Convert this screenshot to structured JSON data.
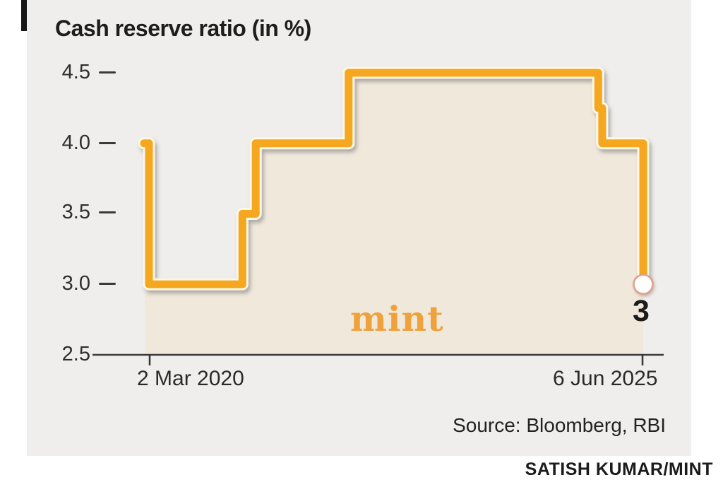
{
  "title": "Cash reserve ratio (in %)",
  "watermark": "mint",
  "source": "Source: Bloomberg, RBI",
  "credit": "SATISH KUMAR/MINT",
  "colors": {
    "line": "#f5a71f",
    "line_casing": "#fdf7e6",
    "line_shadow": "#7a7a78",
    "area_fill": "#f1e8dc",
    "panel_bg": "#efeeec",
    "marker_fill": "#ffffff",
    "marker_ring": "#e2a08b",
    "logo_orange": "#efa23b",
    "axis": "#3a3a3a"
  },
  "chart_data": {
    "type": "line",
    "subtype": "step",
    "title": "Cash reserve ratio (in %)",
    "ylabel": "Cash reserve ratio (%)",
    "xlabel": "",
    "ylim": [
      2.5,
      4.5
    ],
    "yticks": [
      "4.5",
      "4.0",
      "3.5",
      "3.0",
      "2.5"
    ],
    "xtick_labels": {
      "start": "2 Mar 2020",
      "end": "6 Jun 2025"
    },
    "grid": false,
    "legend": false,
    "area_fill_to_baseline": true,
    "end_label": "3",
    "end_value": 3.0,
    "series_name": "Cash reserve ratio",
    "points_note": "x is fraction of axis span between the 2 Mar 2020 and 6 Jun 2025 ticks; y is CRR in %",
    "points": [
      [
        0.0,
        4.0
      ],
      [
        0.0,
        3.0
      ],
      [
        0.189,
        3.0
      ],
      [
        0.189,
        3.5
      ],
      [
        0.216,
        3.5
      ],
      [
        0.216,
        4.0
      ],
      [
        0.404,
        4.0
      ],
      [
        0.404,
        4.5
      ],
      [
        0.909,
        4.5
      ],
      [
        0.909,
        4.25
      ],
      [
        0.917,
        4.25
      ],
      [
        0.917,
        4.0
      ],
      [
        1.0,
        4.0
      ],
      [
        1.0,
        3.0
      ]
    ]
  }
}
